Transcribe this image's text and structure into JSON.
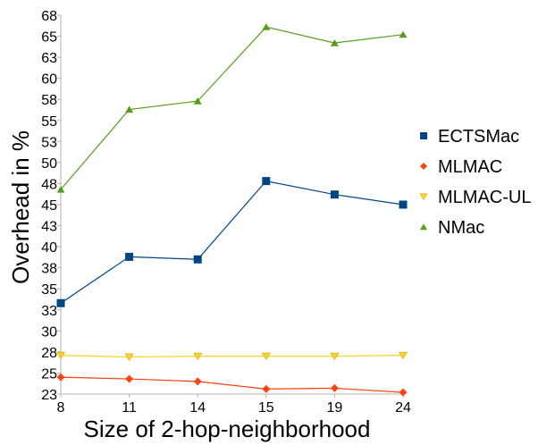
{
  "chart_data": {
    "type": "line",
    "xlabel": "Size of 2-hop-neighborhood",
    "ylabel": "Overhead in %",
    "categories": [
      "8",
      "11",
      "14",
      "15",
      "19",
      "24"
    ],
    "y_ticks": [
      "23",
      "25",
      "28",
      "30",
      "33",
      "35",
      "38",
      "40",
      "43",
      "45",
      "48",
      "50",
      "53",
      "55",
      "58",
      "60",
      "63",
      "65",
      "68"
    ],
    "ylim": [
      23,
      68
    ],
    "grid": false,
    "legend_position": "right",
    "series": [
      {
        "name": "ECTSMac",
        "marker": "square",
        "color": "#004586",
        "values": [
          33.8,
          39.3,
          39.0,
          48.3,
          46.7,
          45.5
        ]
      },
      {
        "name": "MLMAC",
        "marker": "diamond",
        "color": "#ff420e",
        "values": [
          25.0,
          24.8,
          24.5,
          23.6,
          23.7,
          23.2
        ]
      },
      {
        "name": "MLMAC-UL",
        "marker": "triangle-down",
        "color": "#ffd320",
        "values": [
          27.6,
          27.4,
          27.5,
          27.5,
          27.5,
          27.6
        ]
      },
      {
        "name": "NMac",
        "marker": "triangle-up",
        "color": "#579d1c",
        "values": [
          47.3,
          56.8,
          57.8,
          66.6,
          64.7,
          65.7
        ]
      }
    ]
  }
}
